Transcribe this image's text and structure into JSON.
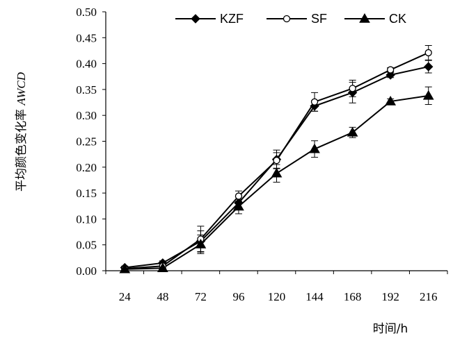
{
  "chart_data": {
    "type": "line",
    "title": "",
    "xlabel": "时间/h",
    "ylabel_prefix": "平均颜色变化率 ",
    "ylabel_italic": "AWCD",
    "categories": [
      "24",
      "48",
      "72",
      "96",
      "120",
      "144",
      "168",
      "192",
      "216"
    ],
    "ylim": [
      0,
      0.5
    ],
    "y_ticks": [
      "0.00",
      "0.05",
      "0.10",
      "0.15",
      "0.20",
      "0.25",
      "0.30",
      "0.35",
      "0.40",
      "0.45",
      "0.50"
    ],
    "legend_position": "top-right",
    "grid": false,
    "series": [
      {
        "name": "KZF",
        "marker": "diamond",
        "values": [
          0.006,
          0.015,
          0.057,
          0.131,
          0.215,
          0.318,
          0.344,
          0.378,
          0.394
        ],
        "errors": [
          0.003,
          0.004,
          0.02,
          0.012,
          0.018,
          0.01,
          0.02,
          0.005,
          0.012
        ]
      },
      {
        "name": "SF",
        "marker": "circle-open",
        "values": [
          0.004,
          0.009,
          0.061,
          0.144,
          0.213,
          0.326,
          0.352,
          0.388,
          0.421
        ],
        "errors": [
          0.003,
          0.004,
          0.025,
          0.01,
          0.015,
          0.018,
          0.016,
          0.004,
          0.014
        ]
      },
      {
        "name": "CK",
        "marker": "triangle",
        "values": [
          0.003,
          0.005,
          0.051,
          0.124,
          0.188,
          0.235,
          0.267,
          0.327,
          0.338
        ],
        "errors": [
          0.002,
          0.003,
          0.018,
          0.014,
          0.017,
          0.016,
          0.01,
          0.005,
          0.017
        ]
      }
    ]
  }
}
